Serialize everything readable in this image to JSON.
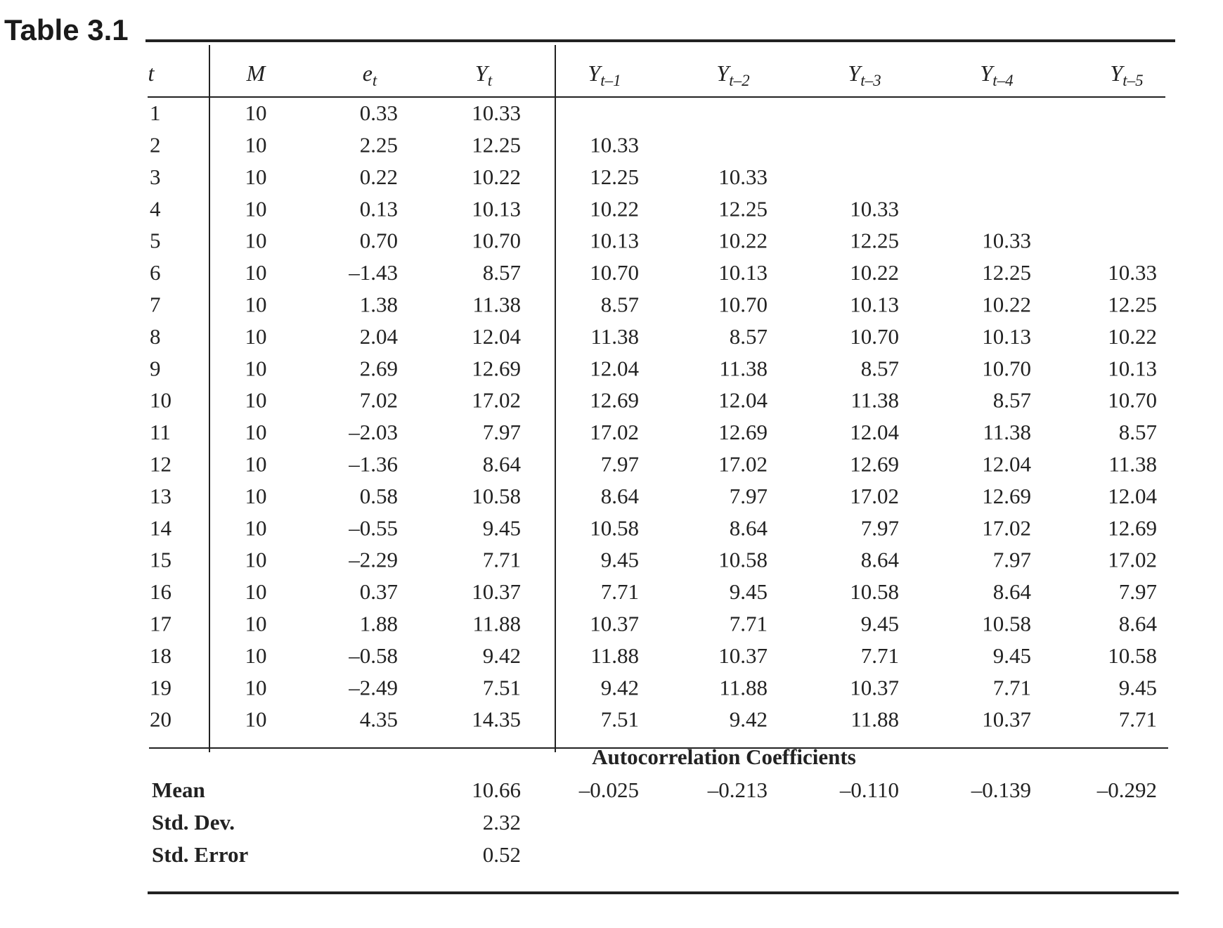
{
  "title": "Table 3.1",
  "header": {
    "columns": [
      {
        "base": "t"
      },
      {
        "base": "M"
      },
      {
        "base": "e",
        "sub": "t"
      },
      {
        "base": "Y",
        "sub": "t"
      },
      {
        "base": "Y",
        "sub": "t–1"
      },
      {
        "base": "Y",
        "sub": "t–2"
      },
      {
        "base": "Y",
        "sub": "t–3"
      },
      {
        "base": "Y",
        "sub": "t–4"
      },
      {
        "base": "Y",
        "sub": "t–5"
      }
    ]
  },
  "table": {
    "rows": [
      [
        "1",
        "10",
        "0.33",
        "10.33",
        null,
        null,
        null,
        null,
        null
      ],
      [
        "2",
        "10",
        "2.25",
        "12.25",
        "10.33",
        null,
        null,
        null,
        null
      ],
      [
        "3",
        "10",
        "0.22",
        "10.22",
        "12.25",
        "10.33",
        null,
        null,
        null
      ],
      [
        "4",
        "10",
        "0.13",
        "10.13",
        "10.22",
        "12.25",
        "10.33",
        null,
        null
      ],
      [
        "5",
        "10",
        "0.70",
        "10.70",
        "10.13",
        "10.22",
        "12.25",
        "10.33",
        null
      ],
      [
        "6",
        "10",
        "–1.43",
        "8.57",
        "10.70",
        "10.13",
        "10.22",
        "12.25",
        "10.33"
      ],
      [
        "7",
        "10",
        "1.38",
        "11.38",
        "8.57",
        "10.70",
        "10.13",
        "10.22",
        "12.25"
      ],
      [
        "8",
        "10",
        "2.04",
        "12.04",
        "11.38",
        "8.57",
        "10.70",
        "10.13",
        "10.22"
      ],
      [
        "9",
        "10",
        "2.69",
        "12.69",
        "12.04",
        "11.38",
        "8.57",
        "10.70",
        "10.13"
      ],
      [
        "10",
        "10",
        "7.02",
        "17.02",
        "12.69",
        "12.04",
        "11.38",
        "8.57",
        "10.70"
      ],
      [
        "11",
        "10",
        "–2.03",
        "7.97",
        "17.02",
        "12.69",
        "12.04",
        "11.38",
        "8.57"
      ],
      [
        "12",
        "10",
        "–1.36",
        "8.64",
        "7.97",
        "17.02",
        "12.69",
        "12.04",
        "11.38"
      ],
      [
        "13",
        "10",
        "0.58",
        "10.58",
        "8.64",
        "7.97",
        "17.02",
        "12.69",
        "12.04"
      ],
      [
        "14",
        "10",
        "–0.55",
        "9.45",
        "10.58",
        "8.64",
        "7.97",
        "17.02",
        "12.69"
      ],
      [
        "15",
        "10",
        "–2.29",
        "7.71",
        "9.45",
        "10.58",
        "8.64",
        "7.97",
        "17.02"
      ],
      [
        "16",
        "10",
        "0.37",
        "10.37",
        "7.71",
        "9.45",
        "10.58",
        "8.64",
        "7.97"
      ],
      [
        "17",
        "10",
        "1.88",
        "11.88",
        "10.37",
        "7.71",
        "9.45",
        "10.58",
        "8.64"
      ],
      [
        "18",
        "10",
        "–0.58",
        "9.42",
        "11.88",
        "10.37",
        "7.71",
        "9.45",
        "10.58"
      ],
      [
        "19",
        "10",
        "–2.49",
        "7.51",
        "9.42",
        "11.88",
        "10.37",
        "7.71",
        "9.45"
      ],
      [
        "20",
        "10",
        "4.35",
        "14.35",
        "7.51",
        "9.42",
        "11.88",
        "10.37",
        "7.71"
      ]
    ]
  },
  "summary": {
    "heading": "Autocorrelation Coefficients",
    "rows": [
      {
        "label": "Mean",
        "yt": "10.66",
        "autocorrelations": [
          "–0.025",
          "–0.213",
          "–0.110",
          "–0.139",
          "–0.292"
        ]
      },
      {
        "label": "Std. Dev.",
        "yt": "2.32"
      },
      {
        "label": "Std. Error",
        "yt": "0.52"
      }
    ]
  }
}
